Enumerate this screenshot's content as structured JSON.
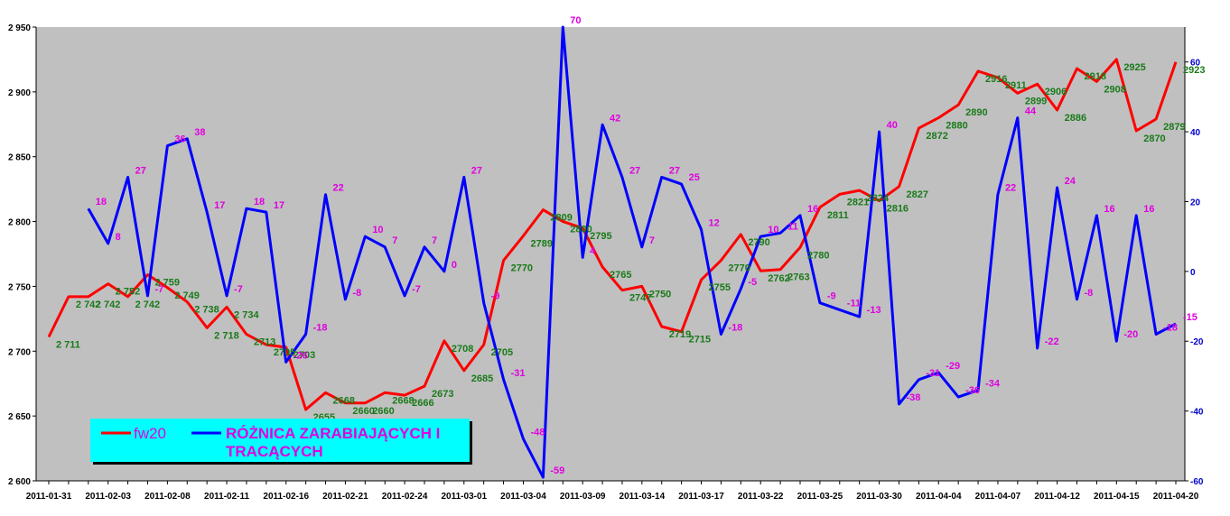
{
  "chart_data": {
    "type": "line",
    "plot_bg": "#c0c0c0",
    "grid": false,
    "x_ticks": [
      "2011-01-31",
      "2011-02-03",
      "2011-02-08",
      "2011-02-11",
      "2011-02-16",
      "2011-02-21",
      "2011-02-24",
      "2011-03-01",
      "2011-03-04",
      "2011-03-09",
      "2011-03-14",
      "2011-03-17",
      "2011-03-22",
      "2011-03-25",
      "2011-03-30",
      "2011-04-04",
      "2011-04-07",
      "2011-04-12",
      "2011-04-15",
      "2011-04-20"
    ],
    "y_left": {
      "min": 2600,
      "max": 2950,
      "ticks": [
        "2 600",
        "2 650",
        "2 700",
        "2 750",
        "2 800",
        "2 850",
        "2 900",
        "2 950"
      ],
      "tick_values": [
        2600,
        2650,
        2700,
        2750,
        2800,
        2850,
        2900,
        2950
      ]
    },
    "y_right": {
      "min": -60,
      "max": 70,
      "ticks": [
        "-60",
        "-40",
        "-20",
        "0",
        "20",
        "40",
        "60"
      ],
      "tick_values": [
        -60,
        -40,
        -20,
        0,
        20,
        40,
        60
      ]
    },
    "legend": {
      "position": "bottom-left"
    },
    "series": [
      {
        "name": "fw20",
        "axis": "left",
        "color": "#ff0000",
        "values": [
          2711,
          2742,
          2742,
          2752,
          2742,
          2759,
          2749,
          2738,
          2718,
          2734,
          2713,
          2705,
          2703,
          2655,
          2668,
          2660,
          2660,
          2668,
          2666,
          2673,
          2708,
          2685,
          2705,
          2770,
          2789,
          2809,
          2800,
          2795,
          2765,
          2747,
          2750,
          2719,
          2715,
          2755,
          2770,
          2790,
          2762,
          2763,
          2780,
          2811,
          2821,
          2824,
          2816,
          2827,
          2872,
          2880,
          2890,
          2916,
          2911,
          2899,
          2906,
          2886,
          2918,
          2908,
          2925,
          2870,
          2879,
          2923
        ],
        "labels": [
          "2 711",
          "2 742",
          "2 742",
          "2 752",
          "2 742",
          "2 759",
          "2 749",
          "2 738",
          "2 718",
          "2 734",
          "2713",
          "2705",
          "2703",
          "2655",
          "2668",
          "2660",
          "2660",
          "2668",
          "2666",
          "2673",
          "2708",
          "2685",
          "2705",
          "2770",
          "2789",
          "2809",
          "2800",
          "2795",
          "2765",
          "2747",
          "2750",
          "2719",
          "2715",
          "2755",
          "2770",
          "2790",
          "2762",
          "2763",
          "2780",
          "2811",
          "2821",
          "2824",
          "2816",
          "2827",
          "2872",
          "2880",
          "2890",
          "2916",
          "2911",
          "2899",
          "2906",
          "2886",
          "2918",
          "2908",
          "2925",
          "2870",
          "2879",
          "2923"
        ]
      },
      {
        "name": "RÓŻNICA ZARABIAJĄCYCH I TRACĄCYCH",
        "axis": "right",
        "color": "#0000ff",
        "values": [
          null,
          null,
          18,
          8,
          27,
          -7,
          36,
          38,
          17,
          -7,
          18,
          17,
          -26,
          -18,
          22,
          -8,
          10,
          7,
          -7,
          7,
          0,
          27,
          -9,
          -31,
          -48,
          -59,
          70,
          4,
          42,
          27,
          7,
          27,
          25,
          12,
          -18,
          -5,
          10,
          11,
          16,
          -9,
          -11,
          -13,
          40,
          -38,
          -31,
          -29,
          -36,
          -34,
          22,
          44,
          -22,
          24,
          -8,
          16,
          -20,
          16,
          -18,
          -15
        ],
        "labels": [
          "",
          "",
          "18",
          "8",
          "27",
          "-7",
          "36",
          "38",
          "17",
          "-7",
          "18",
          "17",
          "-26",
          "-18",
          "22",
          "-8",
          "10",
          "7",
          "-7",
          "7",
          "0",
          "27",
          "-9",
          "-31",
          "-48",
          "-59",
          "70",
          "4",
          "42",
          "27",
          "7",
          "27",
          "25",
          "12",
          "-18",
          "-5",
          "10",
          "11",
          "16",
          "-9",
          "-11",
          "-13",
          "40",
          "-38",
          "-31",
          "-29",
          "-36",
          "-34",
          "22",
          "44",
          "-22",
          "24",
          "-8",
          "16",
          "-20",
          "16",
          "-18",
          "-15"
        ]
      }
    ]
  }
}
